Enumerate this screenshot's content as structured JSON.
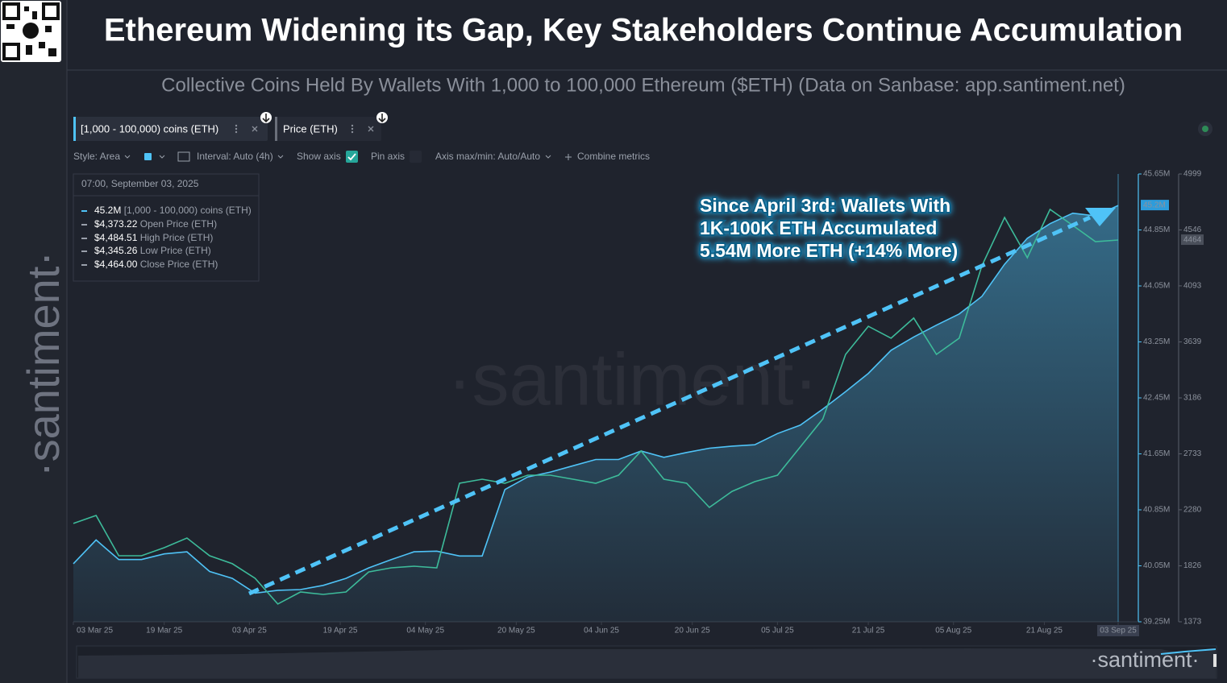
{
  "header": {
    "title": "Ethereum Widening its Gap, Key Stakeholders Continue Accumulation",
    "subtitle": "Collective Coins Held By Wallets With 1,000 to 100,000 Ethereum ($ETH) (Data on Sanbase: app.santiment.net)"
  },
  "brand": "·santiment·",
  "toolbar": {
    "style": "Style: Area",
    "interval": "Interval: Auto (4h)",
    "show_axis": "Show axis",
    "pin_axis": "Pin axis",
    "axis_minmax": "Axis max/min: Auto/Auto",
    "combine": "Combine metrics"
  },
  "tooltip": {
    "time": "07:00, September 03, 2025",
    "rows": [
      {
        "value": "45.2M"
      },
      {
        "value": "$4,373.22",
        "label": "Open Price (ETH)"
      },
      {
        "value": "$4,484.51",
        "label": "High Price (ETH)"
      },
      {
        "value": "$4,345.26",
        "label": "Low Price (ETH)"
      },
      {
        "value": "$4,464.00",
        "label": "Close Price (ETH)"
      }
    ]
  },
  "chart_data": {
    "type": "area",
    "annotation": [
      "Since April 3rd: Wallets With",
      "1K-100K ETH Accumulated",
      "5.54M More ETH (+14% More)"
    ],
    "x": [
      "2025-03-03",
      "2025-03-07",
      "2025-03-11",
      "2025-03-15",
      "2025-03-19",
      "2025-03-23",
      "2025-03-27",
      "2025-03-31",
      "2025-04-04",
      "2025-04-08",
      "2025-04-12",
      "2025-04-16",
      "2025-04-20",
      "2025-04-24",
      "2025-04-28",
      "2025-05-02",
      "2025-05-06",
      "2025-05-10",
      "2025-05-14",
      "2025-05-18",
      "2025-05-22",
      "2025-05-26",
      "2025-05-30",
      "2025-06-03",
      "2025-06-07",
      "2025-06-11",
      "2025-06-15",
      "2025-06-19",
      "2025-06-23",
      "2025-06-27",
      "2025-07-01",
      "2025-07-05",
      "2025-07-09",
      "2025-07-13",
      "2025-07-17",
      "2025-07-21",
      "2025-07-25",
      "2025-07-29",
      "2025-08-02",
      "2025-08-06",
      "2025-08-10",
      "2025-08-14",
      "2025-08-18",
      "2025-08-22",
      "2025-08-26",
      "2025-08-30",
      "2025-09-03"
    ],
    "series": [
      {
        "name": "[1,000 - 100,000) coins (ETH)",
        "color": "#4fc3f7",
        "last_label": "45.2M",
        "values": [
          40080000,
          40420000,
          40140000,
          40140000,
          40220000,
          40250000,
          39970000,
          39870000,
          39660000,
          39700000,
          39710000,
          39770000,
          39870000,
          40020000,
          40140000,
          40250000,
          40260000,
          40190000,
          40190000,
          41140000,
          41320000,
          41390000,
          41480000,
          41570000,
          41570000,
          41690000,
          41600000,
          41670000,
          41730000,
          41760000,
          41780000,
          41940000,
          42060000,
          42290000,
          42540000,
          42800000,
          43130000,
          43320000,
          43490000,
          43650000,
          43900000,
          44360000,
          44730000,
          44940000,
          45090000,
          45050000,
          45200000
        ]
      },
      {
        "name": "Price (ETH)",
        "color": "#3dbb9a",
        "axis": "y2",
        "last_label": "4464",
        "values": [
          2169,
          2234,
          1908,
          1908,
          1973,
          2051,
          1908,
          1843,
          1725,
          1517,
          1614,
          1595,
          1614,
          1777,
          1810,
          1823,
          1810,
          2495,
          2527,
          2495,
          2560,
          2560,
          2527,
          2495,
          2560,
          2756,
          2527,
          2495,
          2299,
          2429,
          2508,
          2560,
          2788,
          3016,
          3538,
          3766,
          3669,
          3832,
          3538,
          3669,
          4256,
          4647,
          4321,
          4712,
          4582,
          4451,
          4464
        ]
      }
    ],
    "xlim": [
      "2025-03-03",
      "2025-09-03"
    ],
    "xticks": [
      {
        "value": "2025-03-03",
        "label": "03 Mar 25"
      },
      {
        "value": "2025-03-19",
        "label": "19 Mar 25"
      },
      {
        "value": "2025-04-03",
        "label": "03 Apr 25"
      },
      {
        "value": "2025-04-19",
        "label": "19 Apr 25"
      },
      {
        "value": "2025-05-04",
        "label": "04 May 25"
      },
      {
        "value": "2025-05-20",
        "label": "20 May 25"
      },
      {
        "value": "2025-06-04",
        "label": "04 Jun 25"
      },
      {
        "value": "2025-06-20",
        "label": "20 Jun 25"
      },
      {
        "value": "2025-07-05",
        "label": "05 Jul 25"
      },
      {
        "value": "2025-07-21",
        "label": "21 Jul 25"
      },
      {
        "value": "2025-08-05",
        "label": "05 Aug 25"
      },
      {
        "value": "2025-08-21",
        "label": "21 Aug 25"
      },
      {
        "value": "2025-09-03",
        "label": "03 Sep 25"
      }
    ],
    "ylim": [
      39250000,
      45650000
    ],
    "yticks": [
      {
        "value": 39250000,
        "label": "39.25M"
      },
      {
        "value": 40050000,
        "label": "40.05M"
      },
      {
        "value": 40850000,
        "label": "40.85M"
      },
      {
        "value": 41650000,
        "label": "41.65M"
      },
      {
        "value": 42450000,
        "label": "42.45M"
      },
      {
        "value": 43250000,
        "label": "43.25M"
      },
      {
        "value": 44050000,
        "label": "44.05M"
      },
      {
        "value": 44850000,
        "label": "44.85M"
      },
      {
        "value": 45650000,
        "label": "45.65M"
      }
    ],
    "y2lim": [
      1373,
      4999
    ],
    "y2ticks": [
      1373,
      1826,
      2280,
      2733,
      3186,
      3639,
      4093,
      4546,
      4999
    ],
    "grid": false
  }
}
